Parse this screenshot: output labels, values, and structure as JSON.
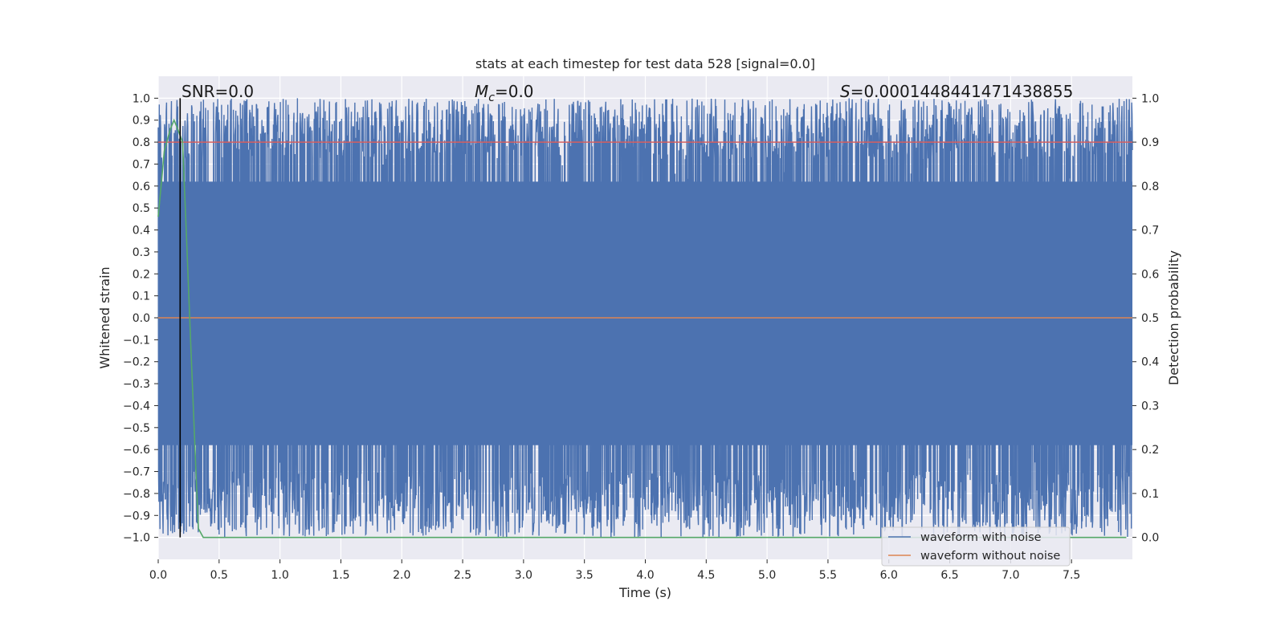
{
  "chart_data": {
    "type": "line",
    "title": "stats at each timestep for test data 528 [signal=0.0]",
    "xlabel": "Time (s)",
    "ylabel": "Whitened strain",
    "y2label": "Detection probability",
    "xlim": [
      0.0,
      8.0
    ],
    "ylim": [
      -1.1,
      1.1
    ],
    "y2lim": [
      -0.05,
      1.05
    ],
    "xticks": [
      "0.0",
      "0.5",
      "1.0",
      "1.5",
      "2.0",
      "2.5",
      "3.0",
      "3.5",
      "4.0",
      "4.5",
      "5.0",
      "5.5",
      "6.0",
      "6.5",
      "7.0",
      "7.5"
    ],
    "yticks": [
      "1.0",
      "0.9",
      "0.8",
      "0.7",
      "0.6",
      "0.5",
      "0.4",
      "0.3",
      "0.2",
      "0.1",
      "0.0",
      "−0.1",
      "−0.2",
      "−0.3",
      "−0.4",
      "−0.5",
      "−0.6",
      "−0.7",
      "−0.8",
      "−0.9",
      "−1.0"
    ],
    "y2ticks": [
      "1.0",
      "0.9",
      "0.8",
      "0.7",
      "0.6",
      "0.5",
      "0.4",
      "0.3",
      "0.2",
      "0.1",
      "0.0"
    ],
    "grid": true,
    "legend_position": "lower-right",
    "series": [
      {
        "name": "waveform with noise",
        "axis": "left",
        "color": "#4c72b0",
        "description_values": "dense noise filling approximately -1.0 to 1.0 over the full time range"
      },
      {
        "name": "waveform without noise",
        "axis": "left",
        "color": "#dd8452",
        "x": [
          0.0,
          8.0
        ],
        "y": [
          0.0,
          0.0
        ]
      },
      {
        "axis": "right",
        "color": "#55a868",
        "x": [
          0.0,
          0.05,
          0.1,
          0.13,
          0.16,
          0.2,
          0.23,
          0.27,
          0.31,
          0.33,
          0.37,
          7.95
        ],
        "y": [
          0.73,
          0.88,
          0.93,
          0.95,
          0.93,
          0.9,
          0.7,
          0.42,
          0.15,
          0.02,
          0.0,
          0.0
        ]
      },
      {
        "axis": "right",
        "color": "#d65f5f",
        "x": [
          0.0,
          8.0
        ],
        "y": [
          0.9,
          0.9
        ]
      }
    ],
    "vline_x": 0.18,
    "annotations": {
      "snr": "SNR=0.0",
      "mc_symbol": "M",
      "mc_sub": "c",
      "mc_value": "=0.0",
      "s_symbol": "S",
      "s_value": "=0.0001448441471438855"
    },
    "colors": {
      "axes_bg": "#eaeaf2",
      "grid": "#ffffff",
      "noise": "#4c72b0",
      "clean": "#dd8452",
      "probability": "#55a868",
      "threshold": "#d65f5f",
      "vline": "#000000"
    }
  }
}
